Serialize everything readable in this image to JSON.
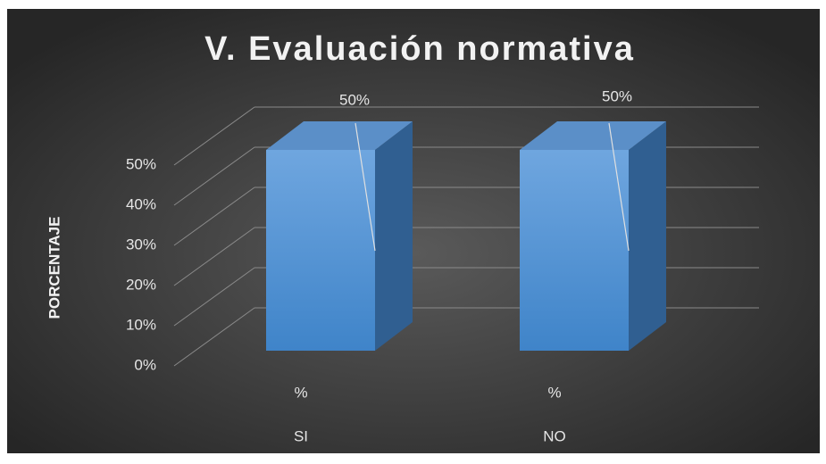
{
  "chart_data": {
    "type": "bar3d",
    "title": "V. Evaluación normativa",
    "y_label": "PORCENTAJE",
    "categories": [
      [
        "%",
        "SI"
      ],
      [
        "%",
        "NO"
      ]
    ],
    "values": [
      50,
      50
    ],
    "value_labels": [
      "50%",
      "50%"
    ],
    "color": "#5b9bd5",
    "ylim": [
      0,
      50
    ],
    "yticks": [
      {
        "value": 0,
        "label": "0%"
      },
      {
        "value": 10,
        "label": "10%"
      },
      {
        "value": 20,
        "label": "20%"
      },
      {
        "value": 30,
        "label": "30%"
      },
      {
        "value": 40,
        "label": "40%"
      },
      {
        "value": 50,
        "label": "50%"
      }
    ],
    "grid": true
  }
}
